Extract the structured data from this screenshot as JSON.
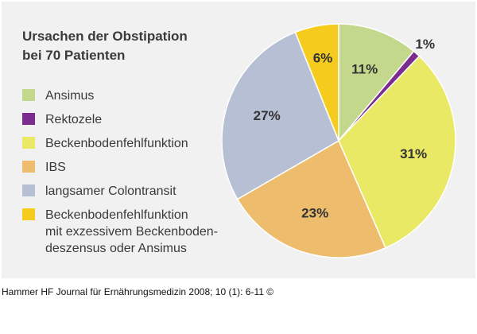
{
  "chart_data": {
    "type": "pie",
    "title": "Ursachen der Obstipation bei 70 Patienten",
    "title_lines": [
      "Ursachen der Obstipation",
      "bei 70 Patienten"
    ],
    "unit": "%",
    "start": "12 o'clock",
    "direction": "clockwise",
    "legend_position": "left",
    "slices": [
      {
        "label": "Ansimus",
        "label_lines": [
          "Ansimus"
        ],
        "value": 11,
        "display": "11%",
        "color": "#c3d78d",
        "label_placement": "inside"
      },
      {
        "label": "Rektozele",
        "label_lines": [
          "Rektozele"
        ],
        "value": 1,
        "display": "1%",
        "color": "#7b2c8e",
        "label_placement": "outside"
      },
      {
        "label": "Beckenbodenfehlfunktion",
        "label_lines": [
          "Beckenbodenfehlfunktion"
        ],
        "value": 31,
        "display": "31%",
        "color": "#e9e965",
        "label_placement": "inside"
      },
      {
        "label": "IBS",
        "label_lines": [
          "IBS"
        ],
        "value": 23,
        "display": "23%",
        "color": "#edbc6c",
        "label_placement": "inside"
      },
      {
        "label": "langsamer Colontransit",
        "label_lines": [
          "langsamer Colontransit"
        ],
        "value": 27,
        "display": "27%",
        "color": "#b7bfd5",
        "label_placement": "inside"
      },
      {
        "label": "Beckenbodenfehlfunktion mit exzessivem Beckenboden-deszensus oder Ansimus",
        "label_lines": [
          "Beckenbodenfehlfunktion",
          "mit exzessivem Beckenboden-",
          "deszensus oder Ansimus"
        ],
        "value": 6,
        "display": "6%",
        "color": "#f5cc1e",
        "label_placement": "inside"
      }
    ]
  },
  "colors": {
    "figure_background": "#f1f1f1",
    "slice_border": "#ffffff",
    "text": "#3a3a3a"
  },
  "caption": "Hammer HF Journal für Ernährungsmedizin 2008; 10 (1): 6-11 ©"
}
